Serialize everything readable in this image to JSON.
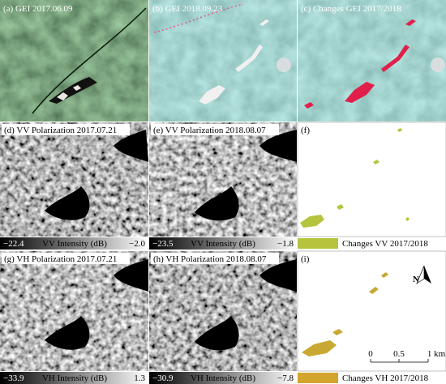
{
  "panels": [
    {
      "label": "(a) GEI 2017.06.09"
    },
    {
      "label": "(b) GEI 2018.09.23"
    },
    {
      "label": "(c) Changes GEI 2017/2018"
    },
    {
      "label": "(d) VV Polarization 2017.07.21"
    },
    {
      "label": "(e) VV Polarization 2018.08.07"
    },
    {
      "label": "(f)"
    },
    {
      "label": "(g) VH Polarization 2017.07.21"
    },
    {
      "label": "(h) VH Polarization 2018.08.07"
    },
    {
      "label": "(i)"
    }
  ],
  "colorbars": [
    {
      "min": "−22.4",
      "title": "VV Intensity (dB)",
      "max": "−2.0"
    },
    {
      "min": "−23.5",
      "title": "VV Intensity (dB)",
      "max": "−1.8"
    },
    {
      "min": "−33.9",
      "title": "VH Intensity (dB)",
      "max": "1.3"
    },
    {
      "min": "−30.9",
      "title": "VH Intensity (dB)",
      "max": "−7.8"
    }
  ],
  "legends": [
    {
      "label": "Changes VV 2017/2018"
    },
    {
      "label": "Changes VH 2017/2018"
    }
  ],
  "scale_bar": {
    "ticks": [
      "0",
      "0.5",
      "1 km"
    ]
  },
  "north": "N"
}
